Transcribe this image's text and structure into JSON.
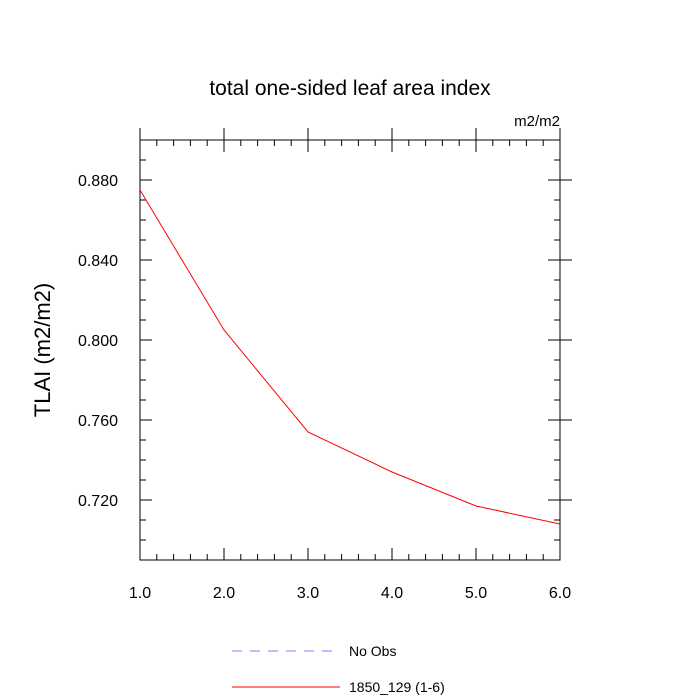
{
  "chart_data": {
    "type": "line",
    "title": "total one-sided leaf area index",
    "units_label": "m2/m2",
    "ylabel": "TLAI  (m2/m2)",
    "xlabel": "",
    "xlim": [
      1.0,
      6.0
    ],
    "ylim": [
      0.69,
      0.9
    ],
    "x_ticks": [
      "1.0",
      "2.0",
      "3.0",
      "4.0",
      "5.0",
      "6.0"
    ],
    "y_ticks": [
      "0.720",
      "0.760",
      "0.800",
      "0.840",
      "0.880"
    ],
    "grid": false,
    "legend_position": "bottom-center",
    "series": [
      {
        "name": "No Obs",
        "color": "#8080ff",
        "dash": "dashed",
        "x": [],
        "y": []
      },
      {
        "name": "1850_129 (1-6)",
        "color": "#ff0000",
        "dash": "solid",
        "x": [
          1,
          2,
          3,
          4,
          5,
          6
        ],
        "y": [
          0.875,
          0.805,
          0.754,
          0.734,
          0.717,
          0.708
        ]
      }
    ]
  }
}
